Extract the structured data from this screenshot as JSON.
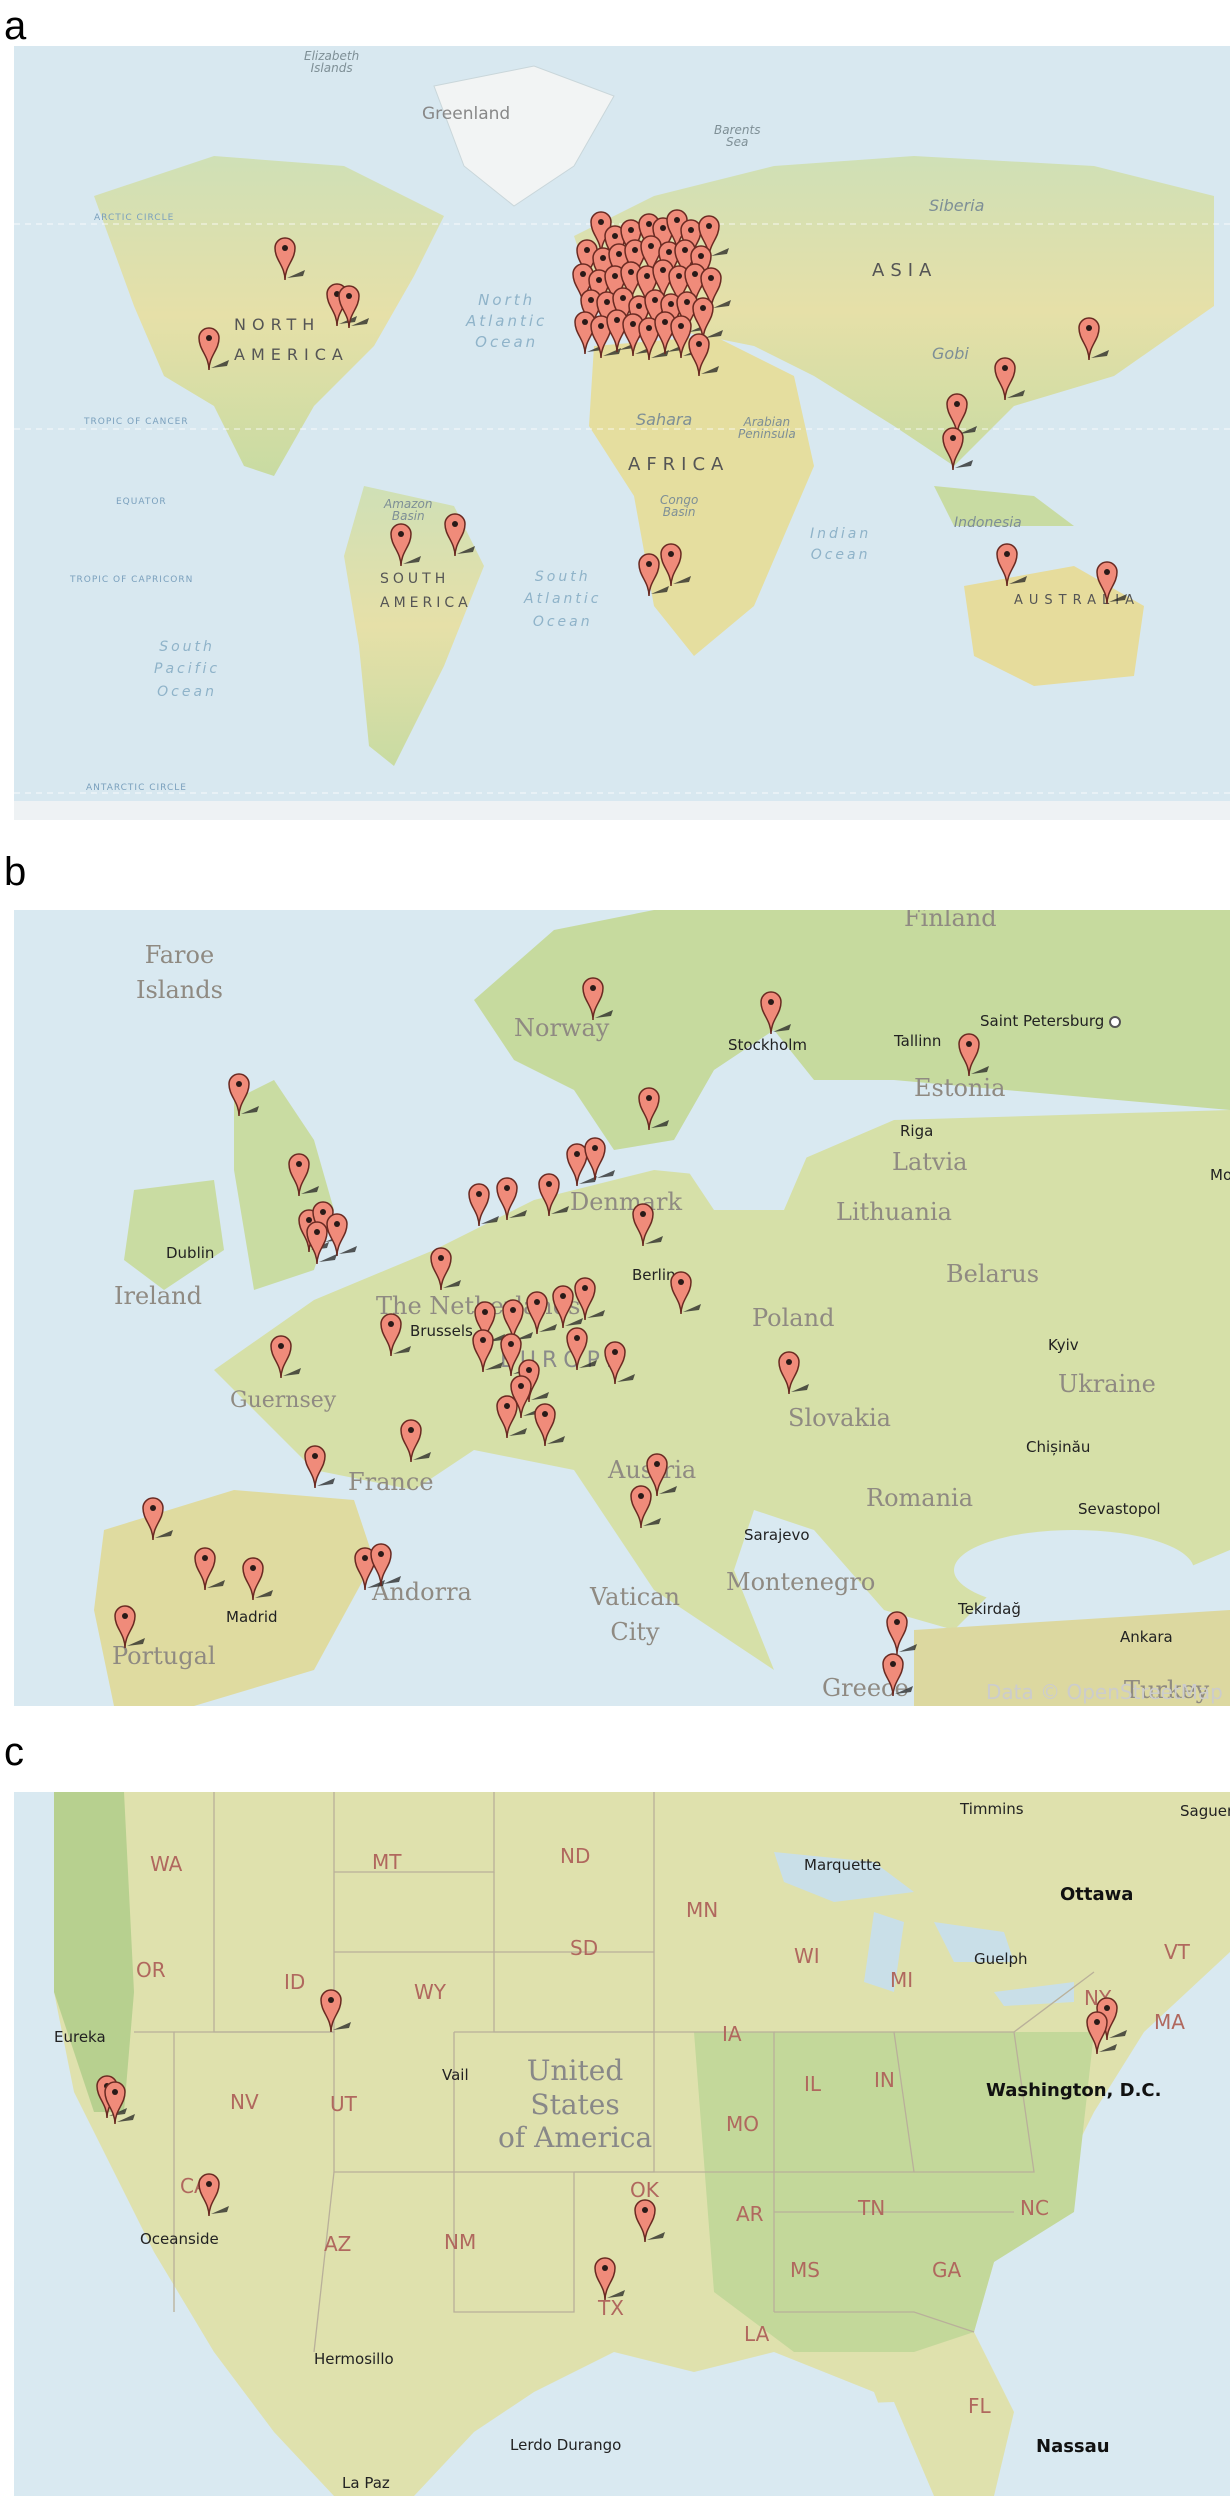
{
  "panels": {
    "a": {
      "letter": "a"
    },
    "b": {
      "letter": "b"
    },
    "c": {
      "letter": "c"
    }
  },
  "world": {
    "labels": {
      "elizabeth_islands": "Elizabeth\nIslands",
      "greenland": "Greenland",
      "barents_sea": "Barents\nSea",
      "siberia": "Siberia",
      "arctic_circle": "ARCTIC CIRCLE",
      "north_america": "NORTH\nAMERICA",
      "north_atlantic_ocean": "North\nAtlantic\nOcean",
      "asia": "ASIA",
      "gobi": "Gobi",
      "tropic_of_cancer": "TROPIC OF CANCER",
      "sahara": "Sahara",
      "arabian_peninsula": "Arabian\nPeninsula",
      "africa": "AFRICA",
      "equator": "EQUATOR",
      "amazon_basin": "Amazon\nBasin",
      "congo_basin": "Congo\nBasin",
      "indonesia": "Indonesia",
      "indian_ocean": "Indian\nOcean",
      "tropic_of_capricorn": "TROPIC OF CAPRICORN",
      "south_america": "SOUTH\nAMERICA",
      "south_atlantic_ocean": "South\nAtlantic\nOcean",
      "australia": "AUSTRALIA",
      "south_pacific_ocean": "South\nPacific\nOcean",
      "antarctic_circle": "ANTARCTIC CIRCLE"
    }
  },
  "europe": {
    "labels": {
      "finland": "Finland",
      "faroe_islands": "Faroe\nIslands",
      "norway": "Norway",
      "stockholm": "Stockholm",
      "saint_petersburg": "Saint Petersburg",
      "tallinn": "Tallinn",
      "estonia": "Estonia",
      "riga": "Riga",
      "latvia": "Latvia",
      "moscow": "Mos",
      "denmark": "Denmark",
      "lithuania": "Lithuania",
      "dublin": "Dublin",
      "ireland": "Ireland",
      "berlin": "Berlin",
      "belarus": "Belarus",
      "the_netherlands": "The Netherlands",
      "brussels": "Brussels",
      "poland": "Poland",
      "europe": "EUROPE",
      "kyiv": "Kyiv",
      "ukraine": "Ukraine",
      "guernsey": "Guernsey",
      "slovakia": "Slovakia",
      "chisinau": "Chișinău",
      "france": "France",
      "austria": "Austria",
      "romania": "Romania",
      "sevastopol": "Sevastopol",
      "sarajevo": "Sarajevo",
      "montenegro": "Montenegro",
      "andorra": "Andorra",
      "madrid": "Madrid",
      "vatican_city": "Vatican\nCity",
      "tekirdag": "Tekirdağ",
      "ankara": "Ankara",
      "portugal": "Portugal",
      "greece": "Greece",
      "turkey": "Turkey",
      "attribution": "Data © OpenStreetMap"
    }
  },
  "usa": {
    "labels": {
      "timmins": "Timmins",
      "saguenay": "Saguena",
      "wa": "WA",
      "mt": "MT",
      "nd": "ND",
      "mn": "MN",
      "sd": "SD",
      "or": "OR",
      "id": "ID",
      "wy": "WY",
      "wi": "WI",
      "mi": "MI",
      "ny": "NY",
      "vt": "VT",
      "ma": "MA",
      "nv": "NV",
      "ut": "UT",
      "ia": "IA",
      "il": "IL",
      "in": "IN",
      "mo": "MO",
      "ca": "CA",
      "az": "AZ",
      "nm": "NM",
      "ok": "OK",
      "ar": "AR",
      "tn": "TN",
      "nc": "NC",
      "ms": "MS",
      "ga": "GA",
      "tx": "TX",
      "la": "LA",
      "fl": "FL",
      "marquette": "Marquette",
      "ottawa": "Ottawa",
      "guelph": "Guelph",
      "eureka": "Eureka",
      "vail": "Vail",
      "united_states": "United\nStates\nof America",
      "washington": "Washington, D.C.",
      "oceanside": "Oceanside",
      "hermosillo": "Hermosillo",
      "lerdo_durango": "Lerdo Durango",
      "la_paz": "La Paz",
      "nassau": "Nassau"
    }
  },
  "colors": {
    "ocean": "#d7e8ef",
    "land_green": "#c5d9a0",
    "land_yellow": "#e8e3ad",
    "pin_fill": "#f08b7a",
    "pin_stroke": "#6a2a22",
    "pin_shadow": "#222222"
  },
  "icons": {
    "pin": "map-marker-icon",
    "city_dot": "city-dot-icon"
  }
}
